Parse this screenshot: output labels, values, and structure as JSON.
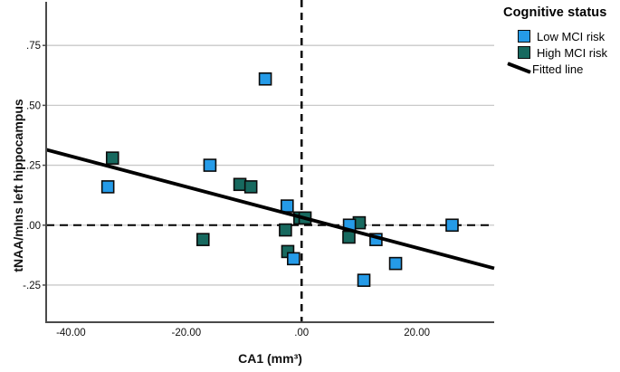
{
  "colors": {
    "low_mci": "#259BE8",
    "high_mci": "#17695F",
    "fitted_line": "#000000",
    "grid": "#C9C9C9",
    "axis": "#4A4A4A",
    "text": "#111111",
    "marker_border": "#0B0B0B",
    "background": "#FFFFFF"
  },
  "legend": {
    "title": "Cognitive status",
    "items": [
      {
        "label": "Low MCI risk",
        "type": "square",
        "color_key": "low_mci"
      },
      {
        "label": "High MCI risk",
        "type": "square",
        "color_key": "high_mci"
      },
      {
        "label": "Fitted line",
        "type": "line",
        "color_key": "fitted_line"
      }
    ]
  },
  "chart_data": {
    "type": "scatter",
    "title": "",
    "xlabel": "CA1 (mm³)",
    "ylabel": "tNAA/mIns left hippocampus",
    "xlim": [
      -44.3,
      33.4
    ],
    "ylim": [
      -0.405,
      0.932
    ],
    "x_ticks": [
      {
        "value": -40,
        "label": "-40.00"
      },
      {
        "value": -20,
        "label": "-20.00"
      },
      {
        "value": 0,
        "label": ".00"
      },
      {
        "value": 20,
        "label": "20.00"
      }
    ],
    "y_ticks": [
      {
        "value": 0.75,
        "label": ".75"
      },
      {
        "value": 0.5,
        "label": ".50"
      },
      {
        "value": 0.25,
        "label": ".25"
      },
      {
        "value": 0,
        "label": ".00"
      },
      {
        "value": -0.25,
        "label": "-.25"
      }
    ],
    "grid": "horizontal",
    "legend_position": "top-right",
    "reference_lines": [
      {
        "axis": "x",
        "value": 0,
        "style": "dashed"
      },
      {
        "axis": "y",
        "value": 0,
        "style": "dashed"
      }
    ],
    "series": [
      {
        "name": "High MCI risk",
        "marker": "square",
        "color_key": "high_mci",
        "points": [
          [
            -32.8,
            0.28
          ],
          [
            -17.1,
            -0.06
          ],
          [
            -10.7,
            0.17
          ],
          [
            -8.8,
            0.16
          ],
          [
            -2.8,
            -0.02
          ],
          [
            -2.4,
            -0.11
          ],
          [
            -0.3,
            0.03
          ],
          [
            0.6,
            0.03
          ],
          [
            8.2,
            -0.05
          ],
          [
            10.0,
            0.01
          ]
        ]
      },
      {
        "name": "Low MCI risk",
        "marker": "square",
        "color_key": "low_mci",
        "points": [
          [
            -33.6,
            0.16
          ],
          [
            -15.9,
            0.25
          ],
          [
            -6.3,
            0.61
          ],
          [
            -2.5,
            0.08
          ],
          [
            -1.4,
            -0.14
          ],
          [
            8.3,
            0.0
          ],
          [
            10.8,
            -0.23
          ],
          [
            12.9,
            -0.06
          ],
          [
            16.3,
            -0.16
          ],
          [
            26.1,
            0.0
          ]
        ]
      }
    ],
    "fitted_line": {
      "name": "Fitted line",
      "from": [
        -44.3,
        0.315
      ],
      "to": [
        33.4,
        -0.18
      ]
    }
  }
}
